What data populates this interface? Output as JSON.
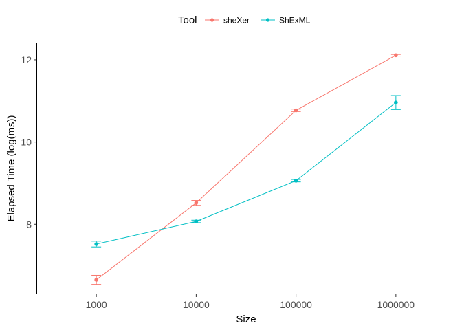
{
  "chart_data": {
    "type": "line",
    "xlabel": "Size",
    "ylabel": "Elapsed Time (log(ms))",
    "categories": [
      "1000",
      "10000",
      "100000",
      "1000000"
    ],
    "ylim": [
      6.3,
      12.4
    ],
    "yticks": [
      8,
      10,
      12
    ],
    "grid": false,
    "legend": {
      "title": "Tool",
      "position": "top"
    },
    "series": [
      {
        "name": "sheXer",
        "color": "#f8766d",
        "values": [
          6.65,
          8.52,
          10.77,
          12.11
        ],
        "error_low": [
          6.54,
          8.46,
          10.74,
          12.09
        ],
        "error_high": [
          6.76,
          8.58,
          10.8,
          12.13
        ]
      },
      {
        "name": "ShExML",
        "color": "#00bfc4",
        "values": [
          7.52,
          8.07,
          9.06,
          10.96
        ],
        "error_low": [
          7.45,
          8.04,
          9.03,
          10.79
        ],
        "error_high": [
          7.59,
          8.1,
          9.09,
          11.13
        ]
      }
    ]
  }
}
